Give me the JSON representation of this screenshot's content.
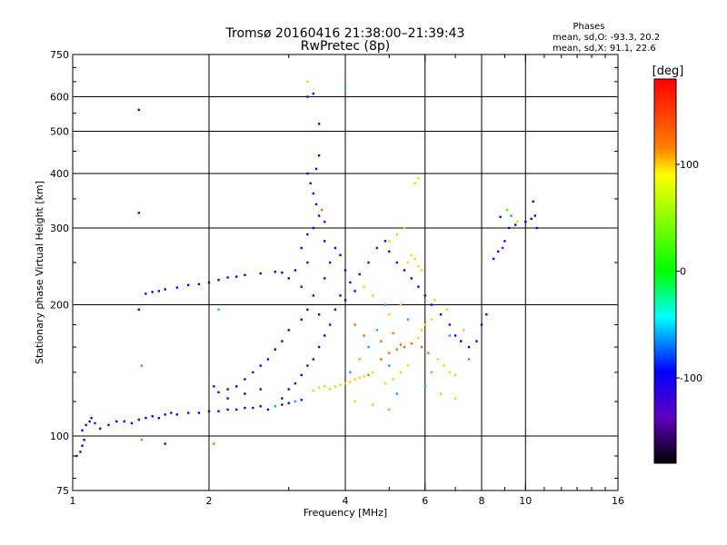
{
  "chart_data": {
    "type": "scatter",
    "title": "Tromsø 20160416 21:38:00–21:39:43",
    "subtitle": "RwPretec (8p)",
    "xlabel": "Frequency [MHz]",
    "ylabel": "Stationary phase Virtual Height [km]",
    "x_scale": "log",
    "y_scale": "log",
    "xlim": [
      1,
      16
    ],
    "ylim": [
      75,
      750
    ],
    "x_ticks": [
      1,
      2,
      4,
      6,
      8,
      10,
      16
    ],
    "y_ticks": [
      75,
      100,
      200,
      300,
      400,
      500,
      600,
      750
    ],
    "x_grid": [
      2,
      4,
      6,
      8,
      10
    ],
    "y_grid": [
      100,
      200,
      300,
      400,
      500,
      600
    ],
    "stats": {
      "header": "Phases",
      "line_o": "mean, sd,O: -93.3, 20.2",
      "line_x": "mean, sd,X:  91.1, 22.6"
    },
    "colorbar": {
      "label": "[deg]",
      "ticks": [
        100,
        0,
        -100
      ],
      "range": [
        -180,
        180
      ],
      "colors": [
        "#ff0000",
        "#ff8000",
        "#ffff00",
        "#00ff00",
        "#00ffff",
        "#0000ff",
        "#6000c0",
        "#000000"
      ]
    },
    "points_color_key": {
      "b": -100,
      "t": -60,
      "g": 20,
      "y": 100,
      "o": 130,
      "p": -130
    },
    "points": [
      [
        1.02,
        90,
        "b"
      ],
      [
        1.04,
        92,
        "b"
      ],
      [
        1.05,
        95,
        "b"
      ],
      [
        1.06,
        98,
        "b"
      ],
      [
        1.05,
        103,
        "b"
      ],
      [
        1.07,
        106,
        "b"
      ],
      [
        1.09,
        108,
        "b"
      ],
      [
        1.1,
        110,
        "b"
      ],
      [
        1.12,
        107,
        "p"
      ],
      [
        1.15,
        104,
        "b"
      ],
      [
        1.2,
        106,
        "b"
      ],
      [
        1.25,
        108,
        "b"
      ],
      [
        1.3,
        108,
        "b"
      ],
      [
        1.35,
        107,
        "b"
      ],
      [
        1.4,
        109,
        "b"
      ],
      [
        1.45,
        110,
        "b"
      ],
      [
        1.5,
        111,
        "b"
      ],
      [
        1.55,
        110,
        "b"
      ],
      [
        1.6,
        112,
        "b"
      ],
      [
        1.65,
        113,
        "b"
      ],
      [
        1.7,
        112,
        "b"
      ],
      [
        1.8,
        113,
        "b"
      ],
      [
        1.9,
        113,
        "b"
      ],
      [
        2.0,
        114,
        "b"
      ],
      [
        2.1,
        114,
        "b"
      ],
      [
        2.2,
        115,
        "b"
      ],
      [
        2.3,
        115,
        "b"
      ],
      [
        2.4,
        116,
        "b"
      ],
      [
        2.5,
        116,
        "b"
      ],
      [
        2.6,
        117,
        "b"
      ],
      [
        2.7,
        115,
        "b"
      ],
      [
        2.8,
        117,
        "t"
      ],
      [
        2.9,
        118,
        "b"
      ],
      [
        3.0,
        119,
        "b"
      ],
      [
        3.1,
        120,
        "t"
      ],
      [
        3.2,
        121,
        "b"
      ],
      [
        1.45,
        212,
        "b"
      ],
      [
        1.5,
        214,
        "b"
      ],
      [
        1.55,
        215,
        "b"
      ],
      [
        1.6,
        217,
        "b"
      ],
      [
        1.7,
        219,
        "b"
      ],
      [
        1.8,
        222,
        "b"
      ],
      [
        1.9,
        223,
        "b"
      ],
      [
        2.0,
        225,
        "b"
      ],
      [
        2.1,
        228,
        "b"
      ],
      [
        2.2,
        231,
        "b"
      ],
      [
        2.3,
        232,
        "b"
      ],
      [
        2.4,
        234,
        "b"
      ],
      [
        2.6,
        236,
        "b"
      ],
      [
        2.8,
        238,
        "b"
      ],
      [
        2.9,
        237,
        "b"
      ],
      [
        1.4,
        560,
        "b"
      ],
      [
        1.4,
        325,
        "b"
      ],
      [
        1.4,
        195,
        "b"
      ],
      [
        1.42,
        145,
        "o"
      ],
      [
        1.42,
        98,
        "o"
      ],
      [
        1.6,
        96,
        "b"
      ],
      [
        2.05,
        96,
        "o"
      ],
      [
        2.1,
        195,
        "t"
      ],
      [
        3.3,
        650,
        "y"
      ],
      [
        3.4,
        610,
        "b"
      ],
      [
        3.5,
        520,
        "b"
      ],
      [
        4.0,
        630,
        "t"
      ],
      [
        3.3,
        600,
        "b"
      ],
      [
        3.3,
        400,
        "b"
      ],
      [
        3.35,
        380,
        "b"
      ],
      [
        3.4,
        360,
        "b"
      ],
      [
        3.45,
        340,
        "b"
      ],
      [
        3.5,
        320,
        "b"
      ],
      [
        3.4,
        300,
        "b"
      ],
      [
        3.3,
        290,
        "b"
      ],
      [
        3.5,
        440,
        "b"
      ],
      [
        3.45,
        410,
        "b"
      ],
      [
        3.55,
        330,
        "o"
      ],
      [
        3.6,
        310,
        "b"
      ],
      [
        3.6,
        280,
        "b"
      ],
      [
        3.2,
        270,
        "b"
      ],
      [
        3.3,
        250,
        "b"
      ],
      [
        3.1,
        240,
        "b"
      ],
      [
        3.0,
        230,
        "b"
      ],
      [
        3.2,
        220,
        "b"
      ],
      [
        3.4,
        210,
        "b"
      ],
      [
        3.3,
        195,
        "b"
      ],
      [
        3.2,
        185,
        "b"
      ],
      [
        3.0,
        175,
        "b"
      ],
      [
        2.9,
        165,
        "b"
      ],
      [
        2.8,
        158,
        "b"
      ],
      [
        2.7,
        150,
        "b"
      ],
      [
        2.6,
        145,
        "b"
      ],
      [
        2.5,
        140,
        "b"
      ],
      [
        2.4,
        135,
        "b"
      ],
      [
        2.3,
        130,
        "b"
      ],
      [
        2.2,
        128,
        "b"
      ],
      [
        2.1,
        126,
        "b"
      ],
      [
        2.05,
        130,
        "b"
      ],
      [
        2.2,
        122,
        "b"
      ],
      [
        2.4,
        125,
        "b"
      ],
      [
        2.6,
        128,
        "b"
      ],
      [
        3.6,
        230,
        "b"
      ],
      [
        3.7,
        250,
        "b"
      ],
      [
        3.8,
        270,
        "b"
      ],
      [
        3.9,
        260,
        "b"
      ],
      [
        4.0,
        240,
        "b"
      ],
      [
        4.1,
        225,
        "b"
      ],
      [
        4.2,
        215,
        "b"
      ],
      [
        4.0,
        205,
        "b"
      ],
      [
        3.8,
        195,
        "b"
      ],
      [
        3.7,
        180,
        "b"
      ],
      [
        3.6,
        170,
        "b"
      ],
      [
        3.5,
        160,
        "b"
      ],
      [
        3.4,
        150,
        "b"
      ],
      [
        3.3,
        145,
        "b"
      ],
      [
        3.2,
        138,
        "b"
      ],
      [
        3.1,
        132,
        "b"
      ],
      [
        3.0,
        128,
        "b"
      ],
      [
        2.9,
        122,
        "b"
      ],
      [
        3.5,
        190,
        "b"
      ],
      [
        3.9,
        210,
        "b"
      ],
      [
        4.3,
        235,
        "b"
      ],
      [
        4.5,
        250,
        "b"
      ],
      [
        4.7,
        270,
        "b"
      ],
      [
        4.9,
        280,
        "b"
      ],
      [
        5.0,
        265,
        "b"
      ],
      [
        5.2,
        250,
        "b"
      ],
      [
        5.4,
        240,
        "b"
      ],
      [
        5.6,
        230,
        "b"
      ],
      [
        5.8,
        220,
        "b"
      ],
      [
        6.0,
        210,
        "b"
      ],
      [
        6.2,
        200,
        "b"
      ],
      [
        6.5,
        190,
        "b"
      ],
      [
        6.8,
        180,
        "b"
      ],
      [
        7.0,
        170,
        "b"
      ],
      [
        7.2,
        165,
        "b"
      ],
      [
        7.5,
        160,
        "b"
      ],
      [
        7.8,
        165,
        "b"
      ],
      [
        8.0,
        180,
        "b"
      ],
      [
        8.2,
        190,
        "b"
      ],
      [
        8.5,
        255,
        "b"
      ],
      [
        8.7,
        265,
        "b"
      ],
      [
        8.9,
        270,
        "p"
      ],
      [
        9.0,
        280,
        "b"
      ],
      [
        9.2,
        300,
        "b"
      ],
      [
        9.5,
        305,
        "b"
      ],
      [
        10.0,
        310,
        "b"
      ],
      [
        10.3,
        315,
        "b"
      ],
      [
        10.5,
        320,
        "b"
      ],
      [
        10.6,
        300,
        "b"
      ],
      [
        10.4,
        345,
        "b"
      ],
      [
        8.8,
        318,
        "b"
      ],
      [
        9.1,
        330,
        "g"
      ],
      [
        9.3,
        320,
        "t"
      ],
      [
        9.6,
        310,
        "y"
      ],
      [
        3.6,
        130,
        "y"
      ],
      [
        3.7,
        128,
        "y"
      ],
      [
        3.8,
        130,
        "y"
      ],
      [
        3.9,
        131,
        "y"
      ],
      [
        4.0,
        132,
        "y"
      ],
      [
        4.1,
        133,
        "y"
      ],
      [
        4.2,
        135,
        "y"
      ],
      [
        4.3,
        136,
        "y"
      ],
      [
        4.4,
        137,
        "y"
      ],
      [
        4.5,
        138,
        "o"
      ],
      [
        4.6,
        140,
        "y"
      ],
      [
        3.5,
        129,
        "y"
      ],
      [
        3.4,
        127,
        "y"
      ],
      [
        4.8,
        150,
        "o"
      ],
      [
        5.0,
        155,
        "o"
      ],
      [
        5.2,
        158,
        "o"
      ],
      [
        5.4,
        160,
        "o"
      ],
      [
        5.6,
        163,
        "o"
      ],
      [
        5.8,
        168,
        "y"
      ],
      [
        5.9,
        175,
        "y"
      ],
      [
        6.0,
        180,
        "y"
      ],
      [
        6.2,
        185,
        "y"
      ],
      [
        6.4,
        150,
        "y"
      ],
      [
        6.6,
        145,
        "y"
      ],
      [
        6.8,
        140,
        "y"
      ],
      [
        7.0,
        138,
        "y"
      ],
      [
        5.5,
        145,
        "y"
      ],
      [
        5.3,
        140,
        "y"
      ],
      [
        5.1,
        135,
        "y"
      ],
      [
        4.9,
        132,
        "y"
      ],
      [
        5.5,
        250,
        "y"
      ],
      [
        5.6,
        260,
        "y"
      ],
      [
        5.7,
        255,
        "y"
      ],
      [
        5.8,
        245,
        "y"
      ],
      [
        5.9,
        240,
        "y"
      ],
      [
        5.0,
        280,
        "y"
      ],
      [
        5.2,
        290,
        "y"
      ],
      [
        5.4,
        300,
        "y"
      ],
      [
        5.7,
        380,
        "y"
      ],
      [
        5.8,
        390,
        "y"
      ],
      [
        5.0,
        190,
        "y"
      ],
      [
        5.3,
        200,
        "y"
      ],
      [
        6.3,
        205,
        "y"
      ],
      [
        6.7,
        195,
        "y"
      ],
      [
        7.3,
        175,
        "y"
      ],
      [
        4.4,
        220,
        "y"
      ],
      [
        4.6,
        210,
        "y"
      ],
      [
        4.2,
        180,
        "o"
      ],
      [
        4.4,
        170,
        "o"
      ],
      [
        4.8,
        165,
        "o"
      ],
      [
        5.1,
        172,
        "o"
      ],
      [
        5.3,
        162,
        "o"
      ],
      [
        5.9,
        160,
        "o"
      ],
      [
        6.1,
        155,
        "o"
      ],
      [
        4.2,
        120,
        "y"
      ],
      [
        4.6,
        118,
        "y"
      ],
      [
        5.0,
        115,
        "g"
      ],
      [
        6.5,
        125,
        "y"
      ],
      [
        7.0,
        122,
        "y"
      ],
      [
        4.5,
        160,
        "t"
      ],
      [
        4.7,
        175,
        "t"
      ],
      [
        5.0,
        145,
        "t"
      ],
      [
        6.0,
        130,
        "t"
      ],
      [
        5.5,
        185,
        "t"
      ],
      [
        4.3,
        150,
        "g"
      ],
      [
        5.2,
        125,
        "t"
      ],
      [
        7.5,
        150,
        "t"
      ],
      [
        6.8,
        170,
        "t"
      ],
      [
        4.9,
        200,
        "t"
      ],
      [
        4.1,
        140,
        "t"
      ],
      [
        6.2,
        140,
        "g"
      ]
    ]
  }
}
